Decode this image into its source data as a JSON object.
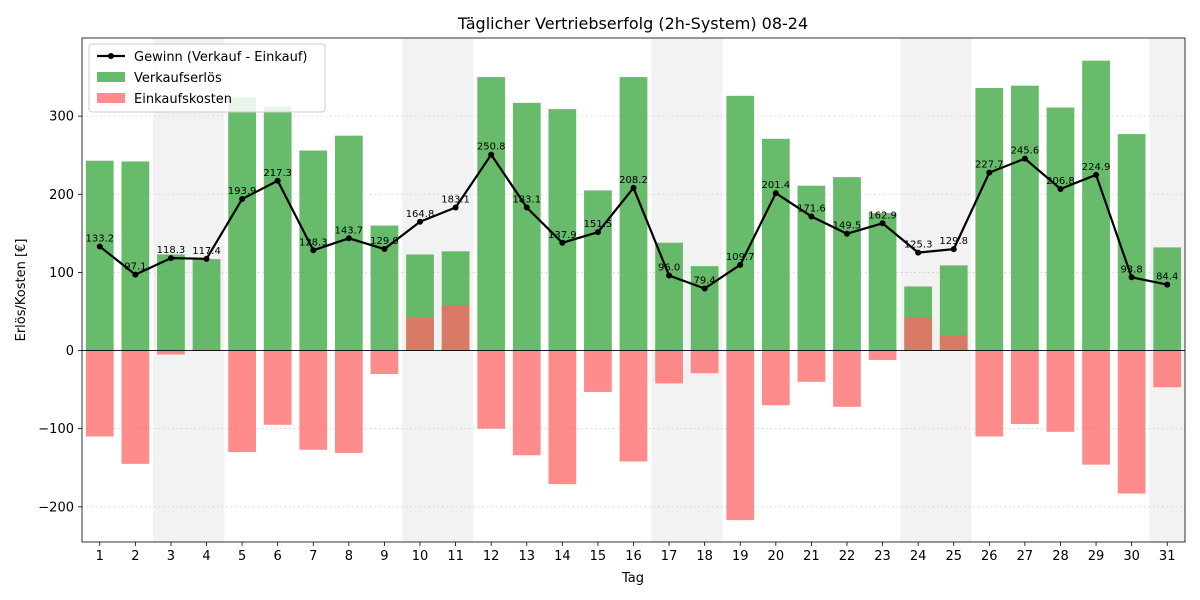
{
  "chart_data": {
    "type": "bar",
    "title": "Täglicher Vertriebserfolg (2h-System) 08-24",
    "xlabel": "Tag",
    "ylabel": "Erlös/Kosten [€]",
    "ylim": [
      -245,
      400
    ],
    "yticks": [
      -200,
      -100,
      0,
      100,
      200,
      300
    ],
    "grid": "y-dotted",
    "legend_position": "top-left",
    "categories": [
      "1",
      "2",
      "3",
      "4",
      "5",
      "6",
      "7",
      "8",
      "9",
      "10",
      "11",
      "12",
      "13",
      "14",
      "15",
      "16",
      "17",
      "18",
      "19",
      "20",
      "21",
      "22",
      "23",
      "24",
      "25",
      "26",
      "27",
      "28",
      "29",
      "30",
      "31"
    ],
    "weekend_days": [
      "3",
      "4",
      "10",
      "11",
      "17",
      "18",
      "24",
      "25",
      "31"
    ],
    "series": [
      {
        "name": "Verkaufserlös",
        "kind": "bar",
        "color": "#4caf50",
        "values": [
          243,
          242,
          123,
          117,
          324,
          312,
          256,
          275,
          160,
          123,
          127,
          350,
          317,
          309,
          205,
          350,
          138,
          108,
          326,
          271,
          211,
          222,
          176,
          82,
          109,
          336,
          339,
          311,
          371,
          277,
          132
        ]
      },
      {
        "name": "Einkaufskosten",
        "kind": "bar",
        "color": "#ff6666",
        "values": [
          -110,
          -145,
          -5,
          1,
          -130,
          -95,
          -127,
          -131,
          -30,
          42,
          58,
          -100,
          -134,
          -171,
          -53,
          -142,
          -42,
          -29,
          -217,
          -70,
          -40,
          -72,
          -12,
          43,
          20,
          -110,
          -94,
          -104,
          -146,
          -183,
          -47
        ]
      },
      {
        "name": "Gewinn (Verkauf - Einkauf)",
        "kind": "line",
        "color": "#000000",
        "values": [
          133.2,
          97.1,
          118.3,
          117.4,
          193.9,
          217.3,
          128.3,
          143.7,
          129.9,
          164.8,
          183.1,
          250.8,
          183.1,
          137.9,
          151.5,
          208.2,
          96.0,
          79.4,
          109.7,
          201.4,
          171.6,
          149.5,
          162.9,
          125.3,
          129.8,
          227.7,
          245.6,
          206.8,
          224.9,
          93.8,
          84.4
        ],
        "labels": [
          "133.2",
          "97.1",
          "118.3",
          "117.4",
          "193.9",
          "217.3",
          "128.3",
          "143.7",
          "129.9",
          "164.8",
          "183.1",
          "250.8",
          "183.1",
          "137.9",
          "151.5",
          "208.2",
          "96.0",
          "79.4",
          "109.7",
          "201.4",
          "171.6",
          "149.5",
          "162.9",
          "125.3",
          "129.8",
          "227.7",
          "245.6",
          "206.8",
          "224.9",
          "93.8",
          "84.4"
        ]
      }
    ],
    "legend": [
      {
        "label": "Gewinn (Verkauf - Einkauf)",
        "kind": "line",
        "color": "#000000"
      },
      {
        "label": "Verkaufserlös",
        "kind": "bar",
        "color": "#4caf50"
      },
      {
        "label": "Einkaufskosten",
        "kind": "bar",
        "color": "#ff6666"
      }
    ]
  }
}
